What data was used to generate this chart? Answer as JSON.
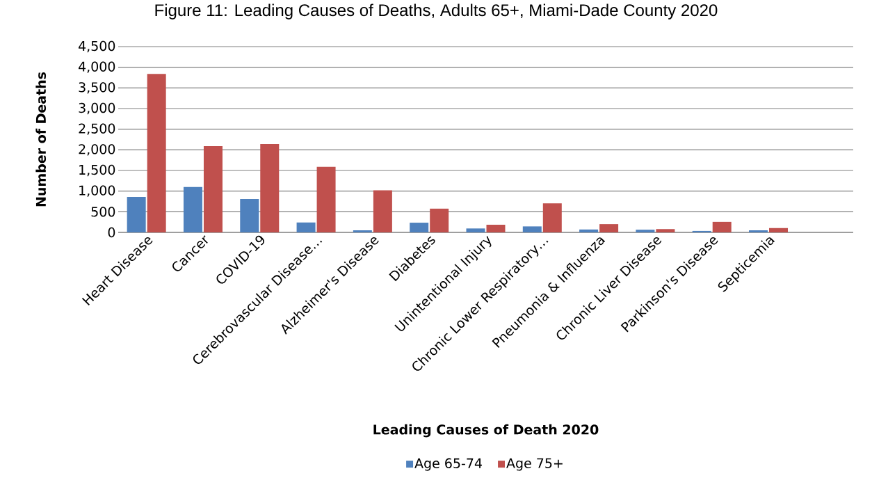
{
  "chart_data": {
    "type": "bar",
    "title": "Figure 11: Leading Causes of Deaths, Adults 65+, Miami-Dade County 2020",
    "xlabel": "Leading Causes of Death 2020",
    "ylabel": "Number of Deaths",
    "categories": [
      "Heart Disease",
      "Cancer",
      "COVID-19",
      "Cerebrovascular Disease…",
      "Alzheimer's Disease",
      "Diabetes",
      "Unintentional Injury",
      "Chronic Lower Respiratory…",
      "Pneumonia & Influenza",
      "Chronic Liver Disease",
      "Parkinson's Disease",
      "Septicemia",
      null
    ],
    "series": [
      {
        "name": "Age 65-74",
        "color": "#4f81bd",
        "values": [
          860,
          1100,
          810,
          240,
          50,
          235,
          95,
          145,
          70,
          65,
          35,
          50,
          null
        ]
      },
      {
        "name": "Age 75+",
        "color": "#c0504d",
        "values": [
          3840,
          2090,
          2140,
          1590,
          1020,
          575,
          185,
          705,
          200,
          80,
          255,
          105,
          null
        ]
      }
    ],
    "ylim": [
      0,
      4500
    ],
    "yticks": [
      {
        "value": 0,
        "label": "0"
      },
      {
        "value": 500,
        "label": "500"
      },
      {
        "value": 1000,
        "label": "1,000"
      },
      {
        "value": 1500,
        "label": "1,500"
      },
      {
        "value": 2000,
        "label": "2,000"
      },
      {
        "value": 2500,
        "label": "2,500"
      },
      {
        "value": 3000,
        "label": "3,000"
      },
      {
        "value": 3500,
        "label": "3,500"
      },
      {
        "value": 4000,
        "label": "4,000"
      },
      {
        "value": 4500,
        "label": "4,500"
      }
    ],
    "grid": "y",
    "legend": "bottom"
  }
}
